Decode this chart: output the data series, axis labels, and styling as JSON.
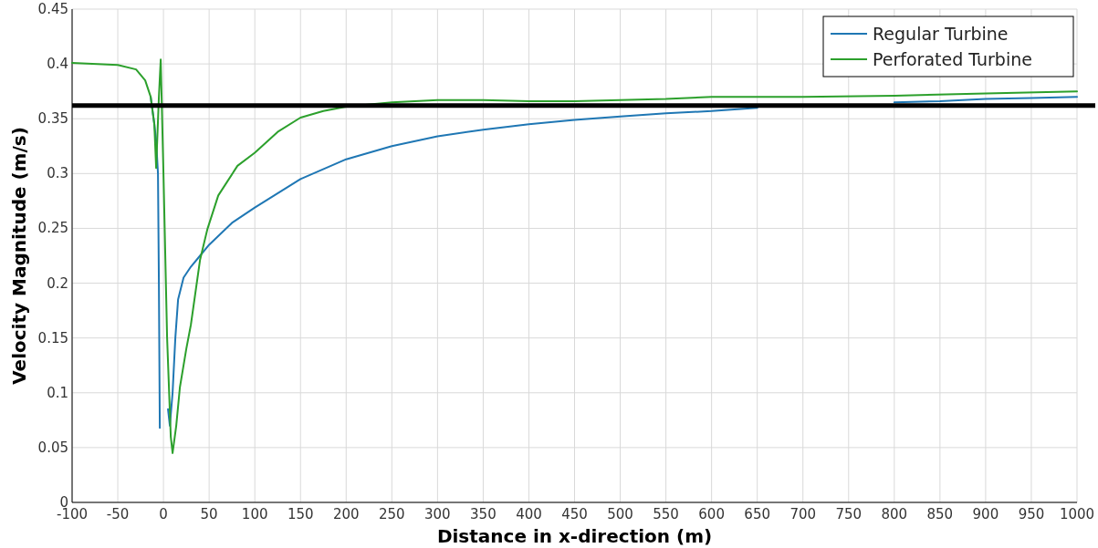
{
  "chart_data": {
    "type": "line",
    "xlabel": "Distance in x-direction (m)",
    "ylabel": "Velocity Magnitude (m/s)",
    "xlim": [
      -100,
      1000
    ],
    "ylim": [
      0,
      0.45
    ],
    "xticks": [
      -100,
      -50,
      0,
      50,
      100,
      150,
      200,
      250,
      300,
      350,
      400,
      450,
      500,
      550,
      600,
      650,
      700,
      750,
      800,
      850,
      900,
      950,
      1000
    ],
    "yticks": [
      0,
      0.05,
      0.1,
      0.15,
      0.2,
      0.25,
      0.3,
      0.35,
      0.4,
      0.45
    ],
    "grid": true,
    "legend": "top right",
    "line_style": "solid",
    "marker": "none",
    "ref_lines": [
      {
        "axis": "y",
        "value": 0.362,
        "color": "#000000"
      }
    ],
    "series": [
      {
        "name": "Regular Turbine",
        "color": "#1f77b4",
        "x": [
          -14,
          -10,
          -8,
          -6,
          -5,
          -4,
          3,
          5,
          7,
          10,
          13,
          16,
          22,
          30,
          40,
          50,
          75,
          100,
          150,
          200,
          250,
          300,
          350,
          400,
          450,
          500,
          550,
          600,
          650,
          700,
          750,
          800,
          850,
          900,
          950,
          1000
        ],
        "values": [
          0.37,
          0.345,
          0.33,
          0.3,
          0.2,
          0.068,
          null,
          0.085,
          0.07,
          0.1,
          0.15,
          0.185,
          0.205,
          0.215,
          0.225,
          0.235,
          0.255,
          0.269,
          0.295,
          0.313,
          0.325,
          0.334,
          0.34,
          0.345,
          0.349,
          0.352,
          0.355,
          0.357,
          0.36,
          null,
          null,
          0.365,
          0.366,
          0.368,
          0.369,
          0.37
        ]
      },
      {
        "name": "Perforated Turbine",
        "color": "#2ca02c",
        "x": [
          -100,
          -50,
          -30,
          -20,
          -14,
          -10,
          -8,
          -5,
          -3,
          0,
          4,
          8,
          10,
          14,
          18,
          25,
          30,
          40,
          48,
          60,
          81,
          100,
          125,
          150,
          175,
          200,
          250,
          300,
          350,
          400,
          450,
          500,
          550,
          600,
          700,
          800,
          900,
          1000
        ],
        "values": [
          0.401,
          0.399,
          0.395,
          0.385,
          0.37,
          0.345,
          0.305,
          0.37,
          0.404,
          0.3,
          0.15,
          0.06,
          0.045,
          0.07,
          0.105,
          0.14,
          0.162,
          0.221,
          0.249,
          0.28,
          0.307,
          0.319,
          0.338,
          0.351,
          0.357,
          0.361,
          0.365,
          0.367,
          0.367,
          0.366,
          0.366,
          0.367,
          0.368,
          0.37,
          0.37,
          0.371,
          0.373,
          0.375
        ]
      }
    ]
  }
}
